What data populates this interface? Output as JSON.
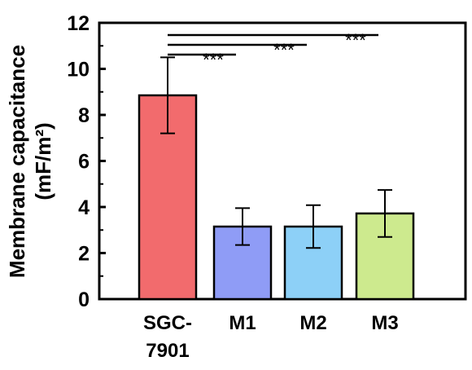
{
  "chart_data": {
    "type": "bar",
    "categories": [
      "SGC-7901",
      "M1",
      "M2",
      "M3"
    ],
    "category_lines": [
      [
        "SGC-",
        "7901"
      ],
      [
        "M1"
      ],
      [
        "M2"
      ],
      [
        "M3"
      ]
    ],
    "values": [
      8.85,
      3.15,
      3.15,
      3.72
    ],
    "errors": [
      1.65,
      0.8,
      0.93,
      1.02
    ],
    "colors": [
      "#f26b6d",
      "#8f9cf6",
      "#8dd0f7",
      "#cdea8e"
    ],
    "ylabel_line1": "Membrane capacitance",
    "ylabel_line2": "(mF/m²)",
    "ylim": [
      0,
      12
    ],
    "yticks": [
      "0",
      "2",
      "4",
      "6",
      "8",
      "10",
      "12"
    ],
    "significance": [
      {
        "from": "SGC-7901",
        "to": "M1",
        "label": "***"
      },
      {
        "from": "SGC-7901",
        "to": "M2",
        "label": "***"
      },
      {
        "from": "SGC-7901",
        "to": "M3",
        "label": "***"
      }
    ],
    "grid": false
  }
}
